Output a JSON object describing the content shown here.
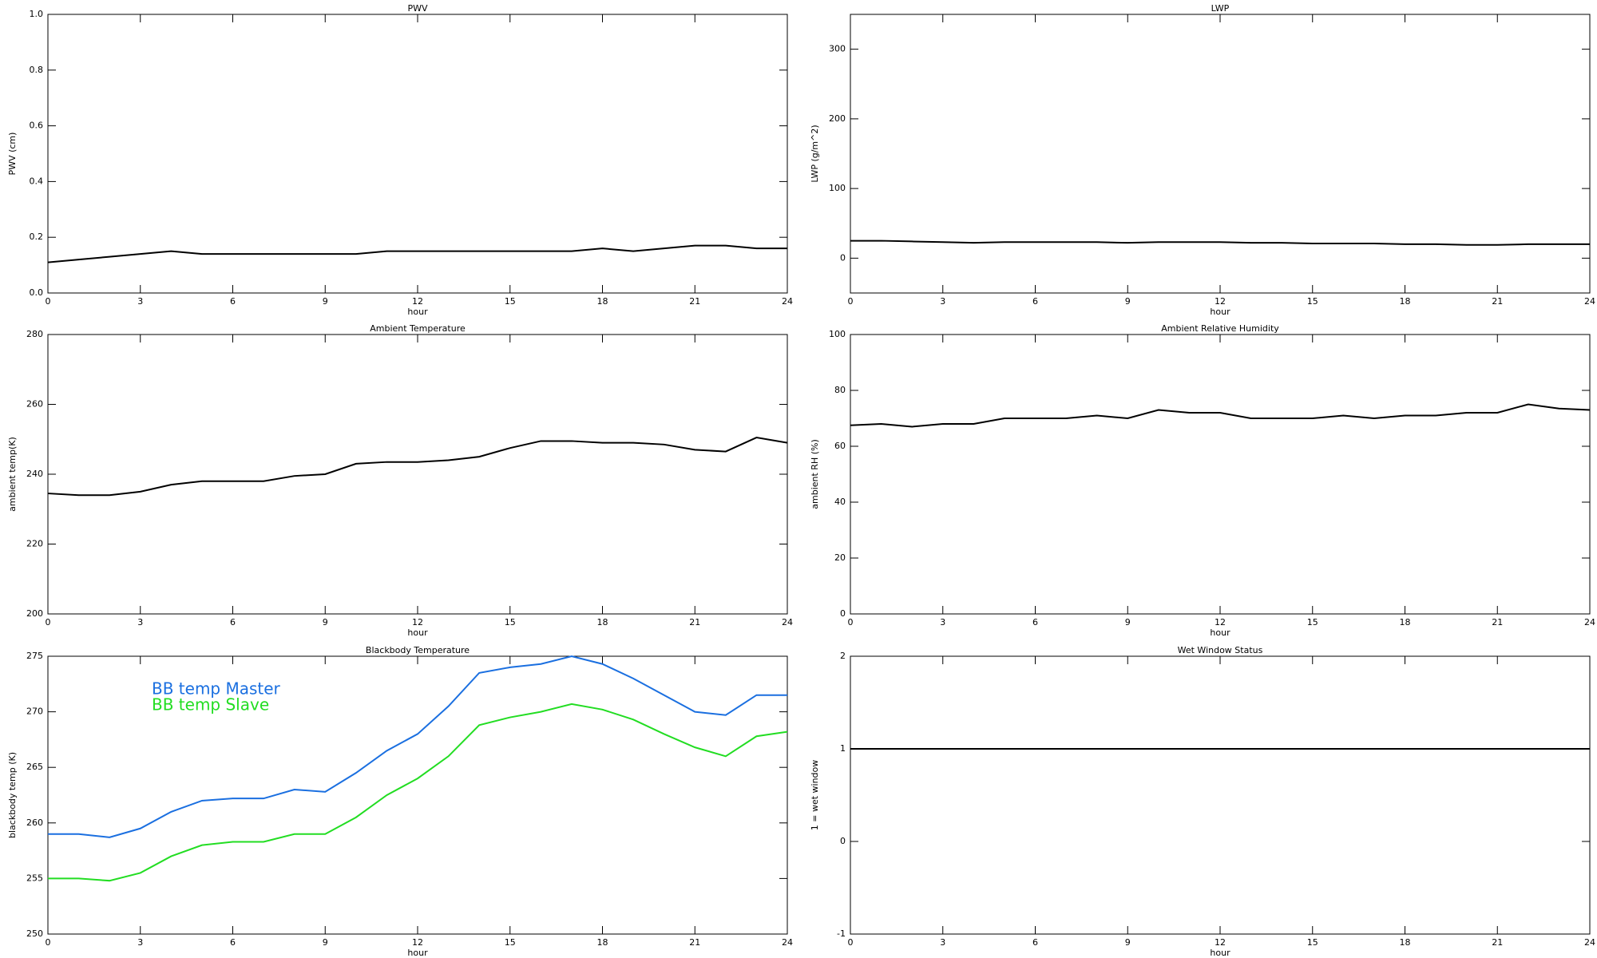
{
  "chart_data": [
    {
      "type": "line",
      "title": "PWV",
      "x_label": "hour",
      "y_label": "PWV (cm)",
      "x": [
        0,
        1,
        2,
        3,
        4,
        5,
        6,
        7,
        8,
        9,
        10,
        11,
        12,
        13,
        14,
        15,
        16,
        17,
        18,
        19,
        20,
        21,
        22,
        23,
        24
      ],
      "values": [
        0.11,
        0.12,
        0.13,
        0.14,
        0.15,
        0.14,
        0.14,
        0.14,
        0.14,
        0.14,
        0.14,
        0.15,
        0.15,
        0.15,
        0.15,
        0.15,
        0.15,
        0.15,
        0.16,
        0.15,
        0.16,
        0.17,
        0.17,
        0.16,
        0.16
      ],
      "color": "#000000",
      "xlim": [
        0,
        24
      ],
      "ylim": [
        0,
        1
      ],
      "xticks": [
        0,
        3,
        6,
        9,
        12,
        15,
        18,
        21,
        24
      ],
      "yticks": [
        {
          "value": 0,
          "label": "0.0"
        },
        0.2,
        0.4,
        0.6,
        0.8,
        {
          "value": 1,
          "label": "1.0"
        }
      ]
    },
    {
      "type": "line",
      "title": "LWP",
      "x_label": "hour",
      "y_label": "LWP (g/m^2)",
      "x": [
        0,
        1,
        2,
        3,
        4,
        5,
        6,
        7,
        8,
        9,
        10,
        11,
        12,
        13,
        14,
        15,
        16,
        17,
        18,
        19,
        20,
        21,
        22,
        23,
        24
      ],
      "values": [
        25,
        25,
        24,
        23,
        22,
        23,
        23,
        23,
        23,
        22,
        23,
        23,
        23,
        22,
        22,
        21,
        21,
        21,
        20,
        20,
        19,
        19,
        20,
        20,
        20
      ],
      "color": "#000000",
      "xlim": [
        0,
        24
      ],
      "ylim": [
        -50,
        350
      ],
      "xticks": [
        0,
        3,
        6,
        9,
        12,
        15,
        18,
        21,
        24
      ],
      "yticks": [
        0,
        100,
        200,
        300
      ]
    },
    {
      "type": "line",
      "title": "Ambient Temperature",
      "x_label": "hour",
      "y_label": "ambient temp(K)",
      "x": [
        0,
        1,
        2,
        3,
        4,
        5,
        6,
        7,
        8,
        9,
        10,
        11,
        12,
        13,
        14,
        15,
        16,
        17,
        18,
        19,
        20,
        21,
        22,
        23,
        24
      ],
      "values": [
        234.5,
        234,
        234,
        235,
        237,
        238,
        238,
        238,
        239.5,
        240,
        243,
        243.5,
        243.5,
        244,
        245,
        247.5,
        249.5,
        249.5,
        249,
        249,
        248.5,
        247,
        246.5,
        250.5,
        249
      ],
      "color": "#000000",
      "xlim": [
        0,
        24
      ],
      "ylim": [
        200,
        280
      ],
      "xticks": [
        0,
        3,
        6,
        9,
        12,
        15,
        18,
        21,
        24
      ],
      "yticks": [
        200,
        220,
        240,
        260,
        280
      ]
    },
    {
      "type": "line",
      "title": "Ambient Relative Humidity",
      "x_label": "hour",
      "y_label": "ambient RH (%)",
      "x": [
        0,
        1,
        2,
        3,
        4,
        5,
        6,
        7,
        8,
        9,
        10,
        11,
        12,
        13,
        14,
        15,
        16,
        17,
        18,
        19,
        20,
        21,
        22,
        23,
        24
      ],
      "values": [
        67.5,
        68,
        67,
        68,
        68,
        70,
        70,
        70,
        71,
        70,
        73,
        72,
        72,
        70,
        70,
        70,
        71,
        70,
        71,
        71,
        72,
        72,
        75,
        73.5,
        73
      ],
      "color": "#000000",
      "xlim": [
        0,
        24
      ],
      "ylim": [
        0,
        100
      ],
      "xticks": [
        0,
        3,
        6,
        9,
        12,
        15,
        18,
        21,
        24
      ],
      "yticks": [
        0,
        20,
        40,
        60,
        80,
        100
      ]
    },
    {
      "type": "line",
      "title": "Blackbody Temperature",
      "x_label": "hour",
      "y_label": "blackbody temp (K)",
      "x": [
        0,
        1,
        2,
        3,
        4,
        5,
        6,
        7,
        8,
        9,
        10,
        11,
        12,
        13,
        14,
        15,
        16,
        17,
        18,
        19,
        20,
        21,
        22,
        23,
        24
      ],
      "series": [
        {
          "name": "BB temp Master",
          "color": "#1a6fe0",
          "values": [
            259,
            259,
            258.7,
            259.5,
            261,
            262,
            262.2,
            262.2,
            263,
            262.8,
            264.5,
            266.5,
            268,
            270.5,
            273.5,
            274,
            274.3,
            275,
            274.3,
            273,
            271.5,
            270,
            269.7,
            271.5,
            271.5
          ]
        },
        {
          "name": "BB temp Slave",
          "color": "#22dd22",
          "values": [
            255,
            255,
            254.8,
            255.5,
            257,
            258,
            258.3,
            258.3,
            259,
            259,
            260.5,
            262.5,
            264,
            266,
            268.8,
            269.5,
            270,
            270.7,
            270.2,
            269.3,
            268,
            266.8,
            266,
            267.8,
            268.2
          ]
        }
      ],
      "xlim": [
        0,
        24
      ],
      "ylim": [
        250,
        275
      ],
      "xticks": [
        0,
        3,
        6,
        9,
        12,
        15,
        18,
        21,
        24
      ],
      "yticks": [
        250,
        255,
        260,
        265,
        270,
        275
      ]
    },
    {
      "type": "line",
      "title": "Wet Window Status",
      "x_label": "hour",
      "y_label": "1 = wet window",
      "x": [
        0,
        24
      ],
      "values": [
        1,
        1
      ],
      "color": "#000000",
      "xlim": [
        0,
        24
      ],
      "ylim": [
        -1,
        2
      ],
      "xticks": [
        0,
        3,
        6,
        9,
        12,
        15,
        18,
        21,
        24
      ],
      "yticks": [
        -1,
        0,
        1,
        2
      ]
    }
  ]
}
